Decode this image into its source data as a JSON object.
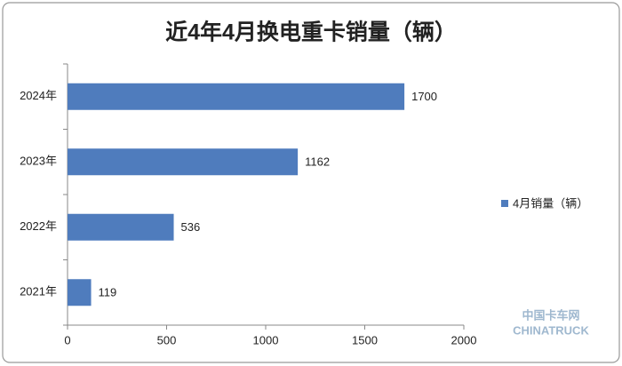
{
  "chart_data": {
    "type": "bar",
    "orientation": "horizontal",
    "title": "近4年4月换电重卡销量（辆）",
    "categories": [
      "2024年",
      "2023年",
      "2022年",
      "2021年"
    ],
    "series": [
      {
        "name": "4月销量（辆）",
        "color": "#4f7cbd",
        "values": [
          1700,
          1162,
          536,
          119
        ]
      }
    ],
    "xlim": [
      0,
      2000
    ],
    "xticks": [
      0,
      500,
      1000,
      1500,
      2000
    ],
    "legend": "right",
    "watermark": [
      "中国卡车网",
      "CHINATRUCK"
    ]
  }
}
